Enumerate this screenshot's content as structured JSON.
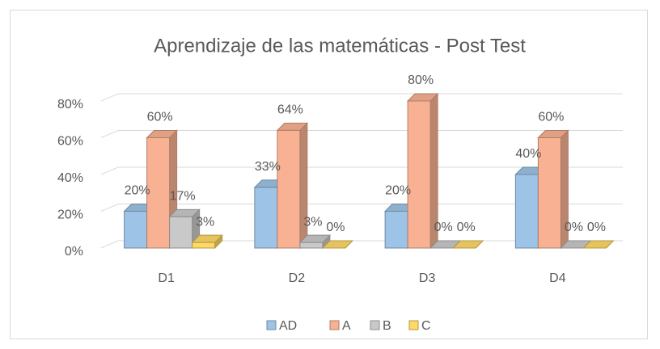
{
  "chart_data": {
    "type": "bar3d",
    "title": "Aprendizaje de las matemáticas - Post Test",
    "categories": [
      "D1",
      "D2",
      "D3",
      "D4"
    ],
    "series": [
      {
        "name": "AD",
        "color": "#9dc3e6",
        "values": [
          20,
          33,
          20,
          40
        ],
        "value_labels": [
          "20%",
          "33%",
          "20%",
          "40%"
        ]
      },
      {
        "name": "A",
        "color": "#f8b293",
        "values": [
          60,
          64,
          80,
          60
        ],
        "value_labels": [
          "60%",
          "64%",
          "80%",
          "60%"
        ]
      },
      {
        "name": "B",
        "color": "#c9c9c9",
        "values": [
          17,
          3,
          0,
          0
        ],
        "value_labels": [
          "17%",
          "3%",
          "0%",
          "0%"
        ]
      },
      {
        "name": "C",
        "color": "#ffd966",
        "values": [
          3,
          0,
          0,
          0
        ],
        "value_labels": [
          "3%",
          "0%",
          "0%",
          "0%"
        ]
      }
    ],
    "ylim": [
      0,
      80
    ],
    "yticks": [
      {
        "value": 0,
        "label": "0%"
      },
      {
        "value": 20,
        "label": "20%"
      },
      {
        "value": 40,
        "label": "40%"
      },
      {
        "value": 60,
        "label": "60%"
      },
      {
        "value": 80,
        "label": "80%"
      }
    ],
    "grid": true,
    "legend": "bottom"
  }
}
